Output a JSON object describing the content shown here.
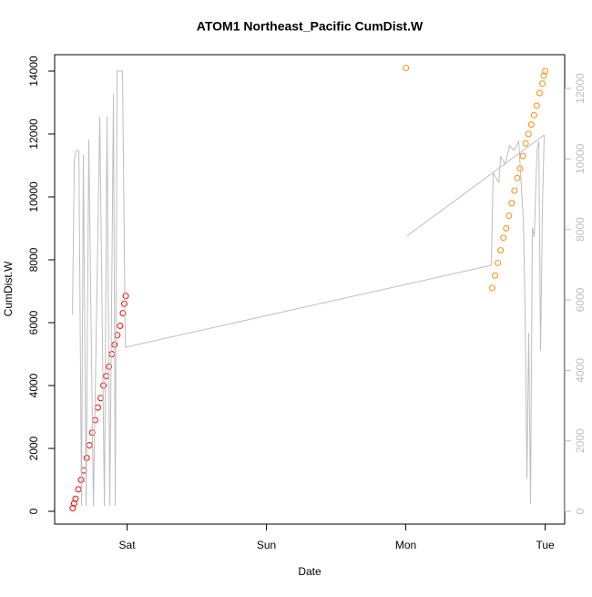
{
  "chart_data": {
    "type": "scatter",
    "title": "ATOM1 Northeast_Pacific CumDist.W",
    "x_label": "Date",
    "y_label": "CumDist.W",
    "xlim": [
      -0.52,
      3.14
    ],
    "xticks": [
      {
        "value": 0,
        "label": "Sat"
      },
      {
        "value": 1,
        "label": "Sun"
      },
      {
        "value": 2,
        "label": "Mon"
      },
      {
        "value": 3,
        "label": "Tue"
      }
    ],
    "ylim": [
      -406,
      14522
    ],
    "yticks": [
      0,
      2000,
      4000,
      6000,
      8000,
      10000,
      12000,
      14000
    ],
    "y2lim": [
      -362,
      12957
    ],
    "y2ticks": [
      0,
      2000,
      4000,
      6000,
      8000,
      10000,
      12000
    ],
    "y2_color": "#bebebe",
    "series": [
      {
        "type": "scatter",
        "color": "#ff0000",
        "x": [
          -0.39,
          -0.38,
          -0.37,
          -0.35,
          -0.33,
          -0.31,
          -0.29,
          -0.27,
          -0.25,
          -0.23,
          -0.21,
          -0.19,
          -0.17,
          -0.15,
          -0.13,
          -0.11,
          -0.09,
          -0.07,
          -0.05,
          -0.03,
          -0.02,
          -0.01
        ],
        "values": [
          100,
          250,
          400,
          700,
          1000,
          1300,
          1700,
          2100,
          2500,
          2900,
          3300,
          3600,
          4000,
          4300,
          4600,
          5000,
          5300,
          5600,
          5900,
          6300,
          6600,
          6850
        ]
      },
      {
        "type": "scatter",
        "color": "#ff8c00",
        "x": [
          2.0,
          2.62,
          2.64,
          2.66,
          2.68,
          2.7,
          2.72,
          2.74,
          2.76,
          2.78,
          2.8,
          2.82,
          2.84,
          2.86,
          2.88,
          2.9,
          2.92,
          2.94,
          2.96,
          2.98,
          2.99,
          3.0
        ],
        "values": [
          14100,
          7100,
          7500,
          7900,
          8300,
          8700,
          9000,
          9400,
          9800,
          10200,
          10600,
          10900,
          11300,
          11700,
          12000,
          12300,
          12600,
          12900,
          13300,
          13600,
          13850,
          14000
        ]
      },
      {
        "type": "line",
        "color": "#bebebe",
        "axis": "y2",
        "x": [
          -0.392,
          -0.379,
          -0.366,
          -0.346,
          -0.327,
          -0.314,
          -0.294,
          -0.275,
          -0.242,
          -0.196,
          -0.163,
          -0.144,
          -0.124,
          -0.098,
          -0.085,
          -0.072,
          -0.033,
          -0.013,
          2.614,
          2.627,
          2.667,
          2.68,
          2.712,
          2.745,
          2.778,
          2.81,
          2.843,
          2.856,
          2.869,
          2.882,
          2.895,
          2.908,
          2.922,
          2.941,
          2.954,
          2.967,
          2.98,
          2.993,
          null,
          2.007,
          2.993
        ],
        "values": [
          5586,
          9983,
          10241,
          10241,
          155,
          10112,
          155,
          10552,
          155,
          11198,
          155,
          11198,
          155,
          11845,
          155,
          12491,
          12491,
          4655,
          6983,
          9595,
          9336,
          10060,
          9853,
          10371,
          10241,
          10500,
          8302,
          5716,
          931,
          5069,
          207,
          8043,
          7784,
          10241,
          10500,
          4552,
          8560,
          10681,
          null,
          7810,
          10681
        ]
      }
    ]
  }
}
